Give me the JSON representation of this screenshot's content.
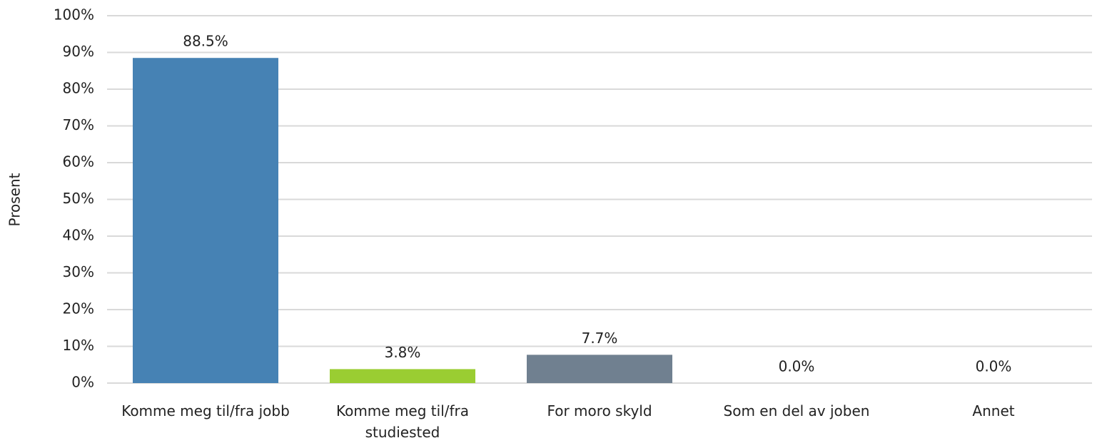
{
  "chart_data": {
    "type": "bar",
    "y_label": "Prosent",
    "categories": [
      "Komme meg til/fra jobb",
      "Komme meg til/fra studiested",
      "For moro skyld",
      "Som en del av joben",
      "Annet"
    ],
    "values": [
      88.5,
      3.8,
      7.7,
      0.0,
      0.0
    ],
    "value_labels": [
      "88.5%",
      "3.8%",
      "7.7%",
      "0.0%",
      "0.0%"
    ],
    "colors": [
      "#4682b4",
      "#9acd32",
      "#708090",
      "#4682b4",
      "#4682b4"
    ],
    "ylim": [
      0,
      100
    ],
    "yticks": [
      {
        "value": 0,
        "label": "0%"
      },
      {
        "value": 10,
        "label": "10%"
      },
      {
        "value": 20,
        "label": "20%"
      },
      {
        "value": 30,
        "label": "30%"
      },
      {
        "value": 40,
        "label": "40%"
      },
      {
        "value": 50,
        "label": "50%"
      },
      {
        "value": 60,
        "label": "60%"
      },
      {
        "value": 70,
        "label": "70%"
      },
      {
        "value": 80,
        "label": "80%"
      },
      {
        "value": 90,
        "label": "90%"
      },
      {
        "value": 100,
        "label": "100%"
      }
    ],
    "grid": true
  }
}
